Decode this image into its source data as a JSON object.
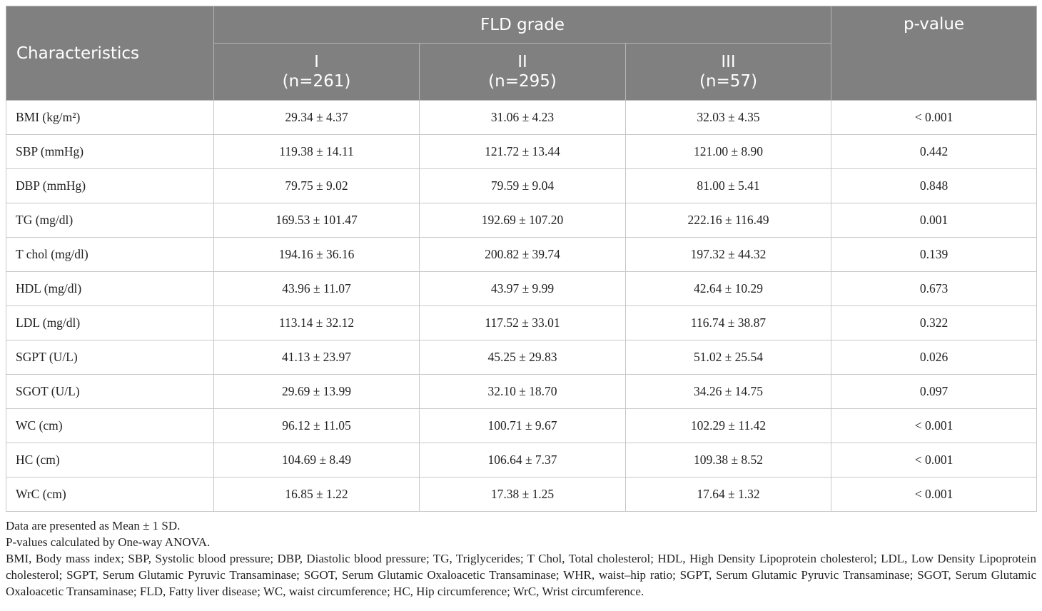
{
  "table": {
    "header": {
      "characteristics": "Characteristics",
      "group": "FLD grade",
      "p_value": "p-value",
      "grades": [
        {
          "label": "I",
          "n": "(n=261)"
        },
        {
          "label": "II",
          "n": "(n=295)"
        },
        {
          "label": "III",
          "n": "(n=57)"
        }
      ]
    },
    "rows": [
      [
        "BMI (kg/m²)",
        "29.34 ± 4.37",
        "31.06 ± 4.23",
        "32.03 ± 4.35",
        "< 0.001"
      ],
      [
        "SBP (mmHg)",
        "119.38 ± 14.11",
        "121.72 ± 13.44",
        "121.00 ± 8.90",
        "0.442"
      ],
      [
        "DBP (mmHg)",
        "79.75 ± 9.02",
        "79.59 ± 9.04",
        "81.00 ± 5.41",
        "0.848"
      ],
      [
        "TG (mg/dl)",
        "169.53 ± 101.47",
        "192.69 ± 107.20",
        "222.16 ± 116.49",
        "0.001"
      ],
      [
        "T chol (mg/dl)",
        "194.16 ± 36.16",
        "200.82 ± 39.74",
        "197.32 ± 44.32",
        "0.139"
      ],
      [
        "HDL (mg/dl)",
        "43.96 ± 11.07",
        "43.97 ± 9.99",
        "42.64 ± 10.29",
        "0.673"
      ],
      [
        "LDL (mg/dl)",
        "113.14 ± 32.12",
        "117.52 ± 33.01",
        "116.74 ± 38.87",
        "0.322"
      ],
      [
        "SGPT (U/L)",
        "41.13 ± 23.97",
        "45.25 ± 29.83",
        "51.02 ± 25.54",
        "0.026"
      ],
      [
        "SGOT (U/L)",
        "29.69 ± 13.99",
        "32.10 ± 18.70",
        "34.26 ± 14.75",
        "0.097"
      ],
      [
        "WC (cm)",
        "96.12 ± 11.05",
        "100.71 ± 9.67",
        "102.29 ± 11.42",
        "< 0.001"
      ],
      [
        "HC (cm)",
        "104.69 ± 8.49",
        "106.64 ± 7.37",
        "109.38 ± 8.52",
        "< 0.001"
      ],
      [
        "WrC (cm)",
        "16.85 ± 1.22",
        "17.38 ± 1.25",
        "17.64 ± 1.32",
        "< 0.001"
      ]
    ]
  },
  "notes": [
    "Data are presented as Mean ± 1 SD.",
    "P-values calculated by One-way ANOVA.",
    "BMI, Body mass index; SBP, Systolic blood pressure; DBP, Diastolic blood pressure; TG, Triglycerides; T Chol, Total cholesterol; HDL, High Density Lipoprotein cholesterol; LDL, Low Density Lipoprotein cholesterol; SGPT, Serum Glutamic Pyruvic Transaminase; SGOT, Serum Glutamic Oxaloacetic Transaminase; WHR, waist–hip ratio; SGPT, Serum Glutamic Pyruvic Transaminase; SGOT, Serum Glutamic Oxaloacetic Transaminase; FLD, Fatty liver disease; WC, waist circumference; HC, Hip circumference; WrC, Wrist circumference."
  ]
}
